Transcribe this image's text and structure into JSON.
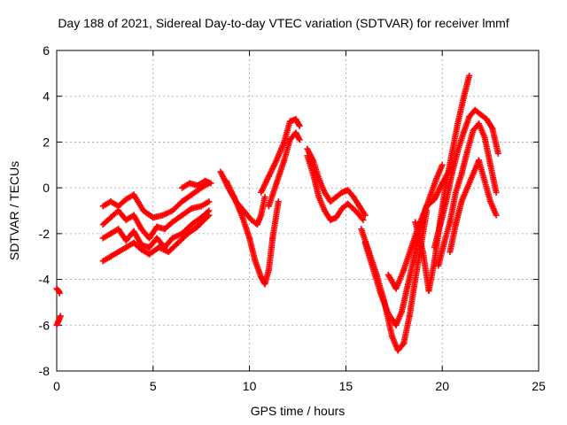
{
  "chart_data": {
    "type": "scatter",
    "title": "Day 188 of 2021, Sidereal Day-to-day VTEC variation (SDTVAR) for receiver lmmf",
    "xlabel": "GPS time / hours",
    "ylabel": "SDTVAR / TECUs",
    "xlim": [
      0,
      25
    ],
    "ylim": [
      -8,
      6
    ],
    "xticks": [
      0,
      5,
      10,
      15,
      20,
      25
    ],
    "yticks": [
      -8,
      -6,
      -4,
      -2,
      0,
      2,
      4,
      6
    ],
    "grid": true,
    "marker": "+",
    "color": "#ff0000",
    "series": [
      {
        "x": [
          0.0,
          0.1,
          0.15
        ],
        "y": [
          -4.4,
          -4.5,
          -4.6
        ]
      },
      {
        "x": [
          0.0,
          0.1,
          0.2
        ],
        "y": [
          -6.0,
          -5.8,
          -5.6
        ]
      },
      {
        "x": [
          2.4,
          2.8,
          3.2,
          3.6,
          4.0,
          4.5,
          5.0,
          5.5,
          6.0,
          6.5,
          7.0,
          7.5,
          7.9
        ],
        "y": [
          -0.8,
          -0.6,
          -0.8,
          -0.5,
          -0.3,
          -1.0,
          -1.3,
          -1.2,
          -1.0,
          -0.6,
          -0.3,
          0.0,
          0.2
        ]
      },
      {
        "x": [
          2.4,
          2.8,
          3.2,
          3.6,
          4.0,
          4.4,
          4.8,
          5.2,
          5.6,
          6.0,
          6.5,
          7.0,
          7.5,
          7.9
        ],
        "y": [
          -1.6,
          -1.3,
          -1.0,
          -1.4,
          -1.2,
          -1.8,
          -2.2,
          -1.7,
          -1.8,
          -1.5,
          -1.2,
          -0.9,
          -0.8,
          -0.6
        ]
      },
      {
        "x": [
          2.4,
          2.8,
          3.2,
          3.6,
          4.0,
          4.4,
          4.8,
          5.2,
          5.6,
          6.0,
          6.5,
          7.0,
          7.5,
          7.9
        ],
        "y": [
          -2.2,
          -2.0,
          -1.8,
          -2.3,
          -1.9,
          -2.5,
          -2.6,
          -2.2,
          -2.6,
          -2.2,
          -2.0,
          -1.6,
          -1.3,
          -1.0
        ]
      },
      {
        "x": [
          2.4,
          2.8,
          3.2,
          3.6,
          4.0,
          4.4,
          4.8,
          5.3,
          5.8,
          6.3,
          6.8,
          7.3,
          7.9
        ],
        "y": [
          -3.2,
          -3.0,
          -2.8,
          -2.6,
          -2.4,
          -2.7,
          -2.9,
          -2.6,
          -2.8,
          -2.4,
          -2.0,
          -1.7,
          -1.2
        ]
      },
      {
        "x": [
          6.5,
          6.9,
          7.3,
          7.7,
          8.0
        ],
        "y": [
          0.0,
          0.2,
          0.1,
          0.3,
          0.2
        ]
      },
      {
        "x": [
          8.5,
          8.9,
          9.3,
          9.7,
          10.1,
          10.4,
          10.6,
          10.8
        ],
        "y": [
          0.7,
          0.0,
          -0.6,
          -1.0,
          -1.4,
          -1.6,
          -1.2,
          -0.4
        ]
      },
      {
        "x": [
          8.8,
          9.2,
          9.6,
          10.0,
          10.3,
          10.6,
          10.8,
          11.0,
          11.2,
          11.5
        ],
        "y": [
          0.3,
          -0.4,
          -1.2,
          -2.2,
          -3.2,
          -3.9,
          -4.2,
          -3.6,
          -2.2,
          -0.6
        ]
      },
      {
        "x": [
          10.6,
          11.0,
          11.4,
          11.8,
          12.1,
          12.4,
          12.6
        ],
        "y": [
          -0.2,
          0.5,
          1.2,
          2.0,
          2.9,
          3.0,
          2.7
        ]
      },
      {
        "x": [
          11.0,
          11.4,
          11.8,
          12.1,
          12.4,
          12.6
        ],
        "y": [
          -0.8,
          0.2,
          1.2,
          2.1,
          2.4,
          2.1
        ]
      },
      {
        "x": [
          13.0,
          13.3,
          13.6,
          13.9,
          14.2,
          14.5,
          14.8,
          15.1,
          15.4,
          15.7,
          16.0
        ],
        "y": [
          1.7,
          1.2,
          0.4,
          -0.2,
          -0.6,
          -0.4,
          -0.2,
          -0.1,
          -0.4,
          -0.8,
          -1.2
        ]
      },
      {
        "x": [
          13.0,
          13.3,
          13.6,
          13.9,
          14.2,
          14.5,
          14.8,
          15.1,
          15.5,
          15.9
        ],
        "y": [
          1.4,
          0.6,
          -0.4,
          -1.0,
          -1.4,
          -1.3,
          -0.9,
          -0.7,
          -1.0,
          -1.4
        ]
      },
      {
        "x": [
          15.8,
          16.2,
          16.6,
          17.0,
          17.4,
          17.7,
          18.0,
          18.3,
          18.6,
          18.9,
          19.2
        ],
        "y": [
          -1.8,
          -2.8,
          -3.8,
          -5.0,
          -6.5,
          -7.1,
          -6.8,
          -5.6,
          -4.0,
          -2.5,
          -1.0
        ]
      },
      {
        "x": [
          16.0,
          16.4,
          16.8,
          17.2,
          17.6,
          17.9,
          18.2,
          18.5,
          18.8,
          19.1,
          19.4,
          19.7,
          20.0
        ],
        "y": [
          -2.4,
          -3.5,
          -4.6,
          -5.5,
          -6.0,
          -5.4,
          -4.3,
          -3.2,
          -2.0,
          -1.0,
          -0.3,
          0.4,
          1.0
        ]
      },
      {
        "x": [
          17.2,
          17.6,
          18.0,
          18.4,
          18.8,
          19.2,
          19.6,
          20.0,
          20.4
        ],
        "y": [
          -3.8,
          -4.4,
          -3.6,
          -2.6,
          -1.6,
          -0.8,
          -0.5,
          0.2,
          0.8
        ]
      },
      {
        "x": [
          18.6,
          19.0,
          19.3,
          19.6,
          19.9,
          20.2,
          20.5,
          20.8,
          21.1,
          21.4
        ],
        "y": [
          -1.5,
          -2.8,
          -4.5,
          -3.2,
          -1.4,
          0.2,
          1.5,
          2.8,
          3.9,
          4.9
        ]
      },
      {
        "x": [
          19.6,
          19.9,
          20.2,
          20.5,
          20.8,
          21.1,
          21.4,
          21.7,
          22.0,
          22.3,
          22.6,
          22.9
        ],
        "y": [
          -2.6,
          -1.6,
          -0.6,
          0.6,
          1.6,
          2.4,
          3.1,
          3.4,
          3.2,
          3.0,
          2.6,
          1.5
        ]
      },
      {
        "x": [
          19.8,
          20.1,
          20.4,
          20.7,
          21.0,
          21.3,
          21.6,
          21.9,
          22.2,
          22.5,
          22.8
        ],
        "y": [
          -3.4,
          -2.4,
          -1.5,
          -0.2,
          0.6,
          1.6,
          2.5,
          2.8,
          2.2,
          1.0,
          -0.2
        ]
      },
      {
        "x": [
          20.4,
          20.7,
          21.0,
          21.3,
          21.6,
          21.9,
          22.2,
          22.5,
          22.8
        ],
        "y": [
          -2.8,
          -1.6,
          -0.6,
          0.0,
          0.6,
          1.2,
          0.3,
          -0.6,
          -1.2
        ]
      }
    ]
  }
}
